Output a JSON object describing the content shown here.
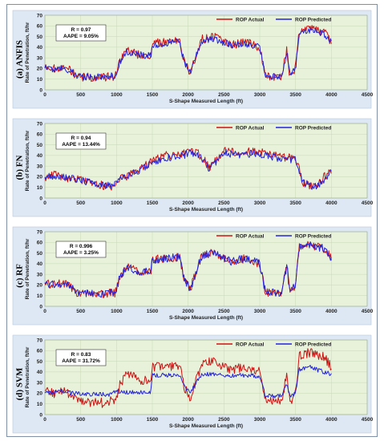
{
  "colors": {
    "actual": "#cc1111",
    "predicted": "#2222dd",
    "plot_bg": "#e8f2da",
    "panel_bg": "#dde8f4",
    "grid": "#c9d8b4"
  },
  "chart_data": [
    {
      "type": "line",
      "panel_label": "(a) ANFIS",
      "stats": [
        "R = 0.97",
        "AAPE = 9.05%"
      ],
      "xlabel": "S-Shape Measured Length (ft)",
      "ylabel": "Rate of Penetration, ft/hr",
      "xlim": [
        0,
        4500
      ],
      "ylim": [
        0,
        70
      ],
      "xticks": [
        "0",
        "500",
        "1000",
        "1500",
        "2000",
        "2500",
        "3000",
        "3500",
        "4000",
        "4500"
      ],
      "yticks": [
        "0",
        "10",
        "20",
        "30",
        "40",
        "50",
        "60",
        "70"
      ],
      "grid": true,
      "legend": "top-right",
      "series": [
        {
          "name": "ROP Actual",
          "role": "actual",
          "noise": 4
        },
        {
          "name": "ROP Predicted",
          "role": "predicted",
          "noise": 3.2
        }
      ],
      "x": [
        0,
        120,
        250,
        380,
        450,
        600,
        800,
        900,
        980,
        1050,
        1150,
        1300,
        1480,
        1500,
        1700,
        1880,
        1950,
        2030,
        2150,
        2200,
        2350,
        2600,
        2800,
        3000,
        3080,
        3300,
        3380,
        3420,
        3500,
        3550,
        3700,
        3800,
        3900,
        4000
      ],
      "y_actual": [
        22,
        20,
        22,
        17,
        12,
        12,
        11,
        13,
        12,
        28,
        38,
        33,
        32,
        44,
        45,
        46,
        25,
        16,
        40,
        48,
        50,
        42,
        45,
        40,
        13,
        12,
        38,
        12,
        20,
        56,
        58,
        56,
        54,
        45
      ],
      "y_predicted": [
        21,
        19,
        21,
        17,
        12,
        12,
        12,
        13,
        13,
        27,
        36,
        33,
        32,
        42,
        44,
        45,
        25,
        17,
        38,
        46,
        48,
        42,
        43,
        40,
        13,
        12,
        36,
        13,
        20,
        53,
        56,
        55,
        52,
        45
      ]
    },
    {
      "type": "line",
      "panel_label": "(b) FN",
      "stats": [
        "R = 0.94",
        "AAPE = 13.44%"
      ],
      "xlabel": "S-Shape Measured Length (ft)",
      "ylabel": "Rate of Penetration, ft/hr",
      "xlim": [
        0,
        4500
      ],
      "ylim": [
        0,
        70
      ],
      "xticks": [
        "0",
        "500",
        "1000",
        "1500",
        "2000",
        "2500",
        "3000",
        "3500",
        "4000",
        "4500"
      ],
      "yticks": [
        "0",
        "10",
        "20",
        "30",
        "40",
        "50",
        "60",
        "70"
      ],
      "grid": true,
      "legend": "top-right",
      "series": [
        {
          "name": "ROP Actual",
          "role": "actual",
          "noise": 4
        },
        {
          "name": "ROP Predicted",
          "role": "predicted",
          "noise": 3.5
        }
      ],
      "x": [
        0,
        150,
        300,
        450,
        600,
        800,
        950,
        1050,
        1200,
        1400,
        1500,
        1700,
        1900,
        2000,
        2100,
        2200,
        2300,
        2500,
        2700,
        2900,
        3100,
        3300,
        3500,
        3600,
        3700,
        3800,
        3900,
        4000
      ],
      "y_actual": [
        20,
        22,
        19,
        18,
        14,
        12,
        10,
        18,
        22,
        30,
        35,
        40,
        40,
        44,
        44,
        38,
        28,
        45,
        42,
        44,
        42,
        38,
        38,
        15,
        12,
        10,
        20,
        25
      ],
      "y_predicted": [
        20,
        21,
        19,
        18,
        15,
        13,
        11,
        18,
        22,
        29,
        34,
        38,
        39,
        42,
        42,
        36,
        27,
        43,
        40,
        42,
        40,
        37,
        36,
        15,
        12,
        10,
        18,
        24
      ]
    },
    {
      "type": "line",
      "panel_label": "(c) RF",
      "stats": [
        "R = 0.996",
        "AAPE = 3.25%"
      ],
      "xlabel": "S-Shape Measured Length (ft)",
      "ylabel": "Rate of Penetration, ft/hr",
      "xlim": [
        0,
        4500
      ],
      "ylim": [
        0,
        70
      ],
      "xticks": [
        "0",
        "500",
        "1000",
        "1500",
        "2000",
        "2500",
        "3000",
        "3500",
        "4000",
        "4500"
      ],
      "yticks": [
        "0",
        "10",
        "20",
        "30",
        "40",
        "50",
        "60",
        "70"
      ],
      "grid": true,
      "legend": "top-right",
      "series": [
        {
          "name": "ROP Actual",
          "role": "actual",
          "noise": 4
        },
        {
          "name": "ROP Predicted",
          "role": "predicted",
          "noise": 3.8
        }
      ],
      "x": [
        0,
        120,
        250,
        380,
        450,
        600,
        800,
        900,
        980,
        1050,
        1150,
        1300,
        1480,
        1500,
        1700,
        1880,
        1950,
        2030,
        2150,
        2200,
        2350,
        2600,
        2800,
        3000,
        3080,
        3300,
        3380,
        3420,
        3500,
        3550,
        3700,
        3800,
        3900,
        4000
      ],
      "y_actual": [
        22,
        20,
        22,
        17,
        12,
        12,
        11,
        13,
        12,
        28,
        38,
        33,
        32,
        44,
        45,
        46,
        25,
        16,
        40,
        48,
        50,
        42,
        45,
        40,
        13,
        12,
        38,
        12,
        20,
        56,
        58,
        56,
        54,
        45
      ],
      "y_predicted": [
        22,
        20,
        22,
        17,
        12,
        12,
        11,
        13,
        12,
        28,
        37,
        33,
        32,
        44,
        45,
        46,
        25,
        16,
        40,
        48,
        50,
        42,
        45,
        40,
        13,
        12,
        38,
        12,
        20,
        55,
        58,
        56,
        54,
        45
      ]
    },
    {
      "type": "line",
      "panel_label": "(d) SVM",
      "stats": [
        "R = 0.83",
        "AAPE = 31.72%"
      ],
      "xlabel": "S-Shape Measured Length (ft)",
      "ylabel": "Rate of Penetration, ft/hr",
      "xlim": [
        0,
        4500
      ],
      "ylim": [
        0,
        70
      ],
      "xticks": [
        "0",
        "500",
        "1000",
        "1500",
        "2000",
        "2500",
        "3000",
        "3500",
        "4000",
        "4500"
      ],
      "yticks": [
        "0",
        "10",
        "20",
        "30",
        "40",
        "50",
        "60",
        "70"
      ],
      "grid": true,
      "legend": "top-right",
      "series": [
        {
          "name": "ROP Actual",
          "role": "actual",
          "noise": 4.5
        },
        {
          "name": "ROP Predicted",
          "role": "predicted",
          "noise": 2
        }
      ],
      "x": [
        0,
        120,
        250,
        380,
        450,
        600,
        800,
        900,
        980,
        1050,
        1150,
        1300,
        1480,
        1500,
        1700,
        1880,
        1950,
        2030,
        2150,
        2200,
        2350,
        2600,
        2800,
        3000,
        3080,
        3300,
        3380,
        3420,
        3500,
        3550,
        3700,
        3800,
        3900,
        4000
      ],
      "y_actual": [
        22,
        20,
        22,
        17,
        12,
        12,
        11,
        13,
        12,
        28,
        38,
        33,
        32,
        44,
        45,
        46,
        25,
        16,
        40,
        48,
        50,
        42,
        45,
        40,
        13,
        12,
        38,
        12,
        20,
        56,
        58,
        56,
        54,
        45
      ],
      "y_predicted": [
        20,
        20,
        22,
        20,
        20,
        19,
        19,
        19,
        21,
        21,
        21,
        21,
        21,
        37,
        37,
        37,
        26,
        20,
        35,
        38,
        38,
        36,
        37,
        36,
        17,
        18,
        30,
        17,
        20,
        42,
        45,
        42,
        40,
        38
      ]
    }
  ]
}
